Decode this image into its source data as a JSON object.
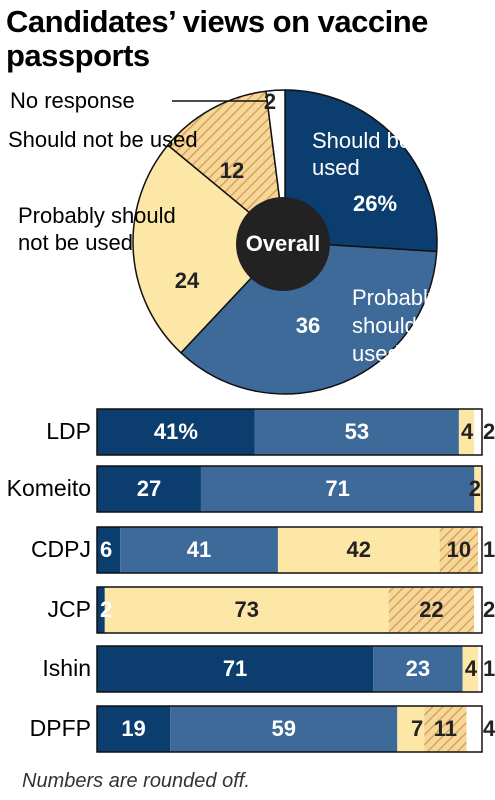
{
  "title_line1": "Candidates’ views on vaccine",
  "title_line2": "passports",
  "footnote": "Numbers are rounded off.",
  "colors": {
    "should": "#0b3d6e",
    "probably_should": "#3d6a99",
    "probably_not": "#fde7a6",
    "should_not": "#f3c97f",
    "no_response": "#ffffff",
    "center": "#222222"
  },
  "chart_data": [
    {
      "type": "pie",
      "center_label": "Overall",
      "slices": [
        {
          "name": "Should be used",
          "value": 26,
          "label": "26%"
        },
        {
          "name": "Probably should be used",
          "value": 36,
          "label": "36"
        },
        {
          "name": "Probably should not be used",
          "value": 24,
          "label": "24"
        },
        {
          "name": "Should not be used",
          "value": 12,
          "label": "12"
        },
        {
          "name": "No response",
          "value": 2,
          "label": "2"
        }
      ]
    },
    {
      "type": "bar",
      "orientation": "horizontal",
      "stacked": true,
      "categories": [
        "LDP",
        "Komeito",
        "CDPJ",
        "JCP",
        "Ishin",
        "DPFP"
      ],
      "series": [
        {
          "name": "Should be used",
          "values": [
            41,
            27,
            6,
            2,
            71,
            19
          ],
          "labels": [
            "41%",
            "27",
            "6",
            "2",
            "71",
            "19"
          ]
        },
        {
          "name": "Probably should be used",
          "values": [
            53,
            71,
            41,
            0,
            23,
            59
          ],
          "labels": [
            "53",
            "71",
            "41",
            "",
            "23",
            "59"
          ]
        },
        {
          "name": "Probably should not be used",
          "values": [
            4,
            2,
            42,
            73,
            4,
            7
          ],
          "labels": [
            "4",
            "2",
            "42",
            "73",
            "4",
            "7"
          ]
        },
        {
          "name": "Should not be used",
          "values": [
            0,
            0,
            10,
            22,
            0,
            11
          ],
          "labels": [
            "",
            "",
            "10",
            "22",
            "",
            "11"
          ]
        },
        {
          "name": "No response",
          "values": [
            2,
            0,
            1,
            2,
            1,
            4
          ],
          "labels": [
            "2",
            "",
            "1",
            "2",
            "1",
            "4"
          ]
        }
      ]
    }
  ]
}
